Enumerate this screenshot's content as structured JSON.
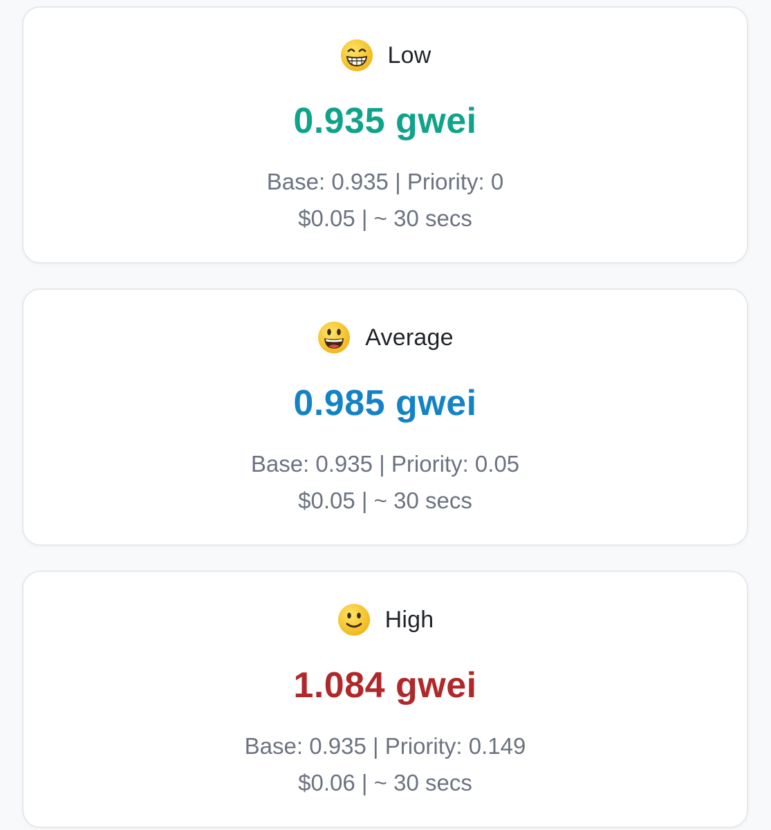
{
  "cards": [
    {
      "level": "Low",
      "icon": "grinning-face-with-smiling-eyes-icon",
      "price": "0.935",
      "unit": "gwei",
      "base_label": "Base:",
      "base": "0.935",
      "priority_label": "Priority:",
      "priority": "0",
      "cost": "$0.05",
      "time": "~ 30 secs",
      "color": "#0ea38a"
    },
    {
      "level": "Average",
      "icon": "grinning-face-with-big-eyes-icon",
      "price": "0.985",
      "unit": "gwei",
      "base_label": "Base:",
      "base": "0.935",
      "priority_label": "Priority:",
      "priority": "0.05",
      "cost": "$0.05",
      "time": "~ 30 secs",
      "color": "#1383c6"
    },
    {
      "level": "High",
      "icon": "slightly-smiling-face-icon",
      "price": "1.084",
      "unit": "gwei",
      "base_label": "Base:",
      "base": "0.935",
      "priority_label": "Priority:",
      "priority": "0.149",
      "cost": "$0.06",
      "time": "~ 30 secs",
      "color": "#b0282a"
    }
  ]
}
